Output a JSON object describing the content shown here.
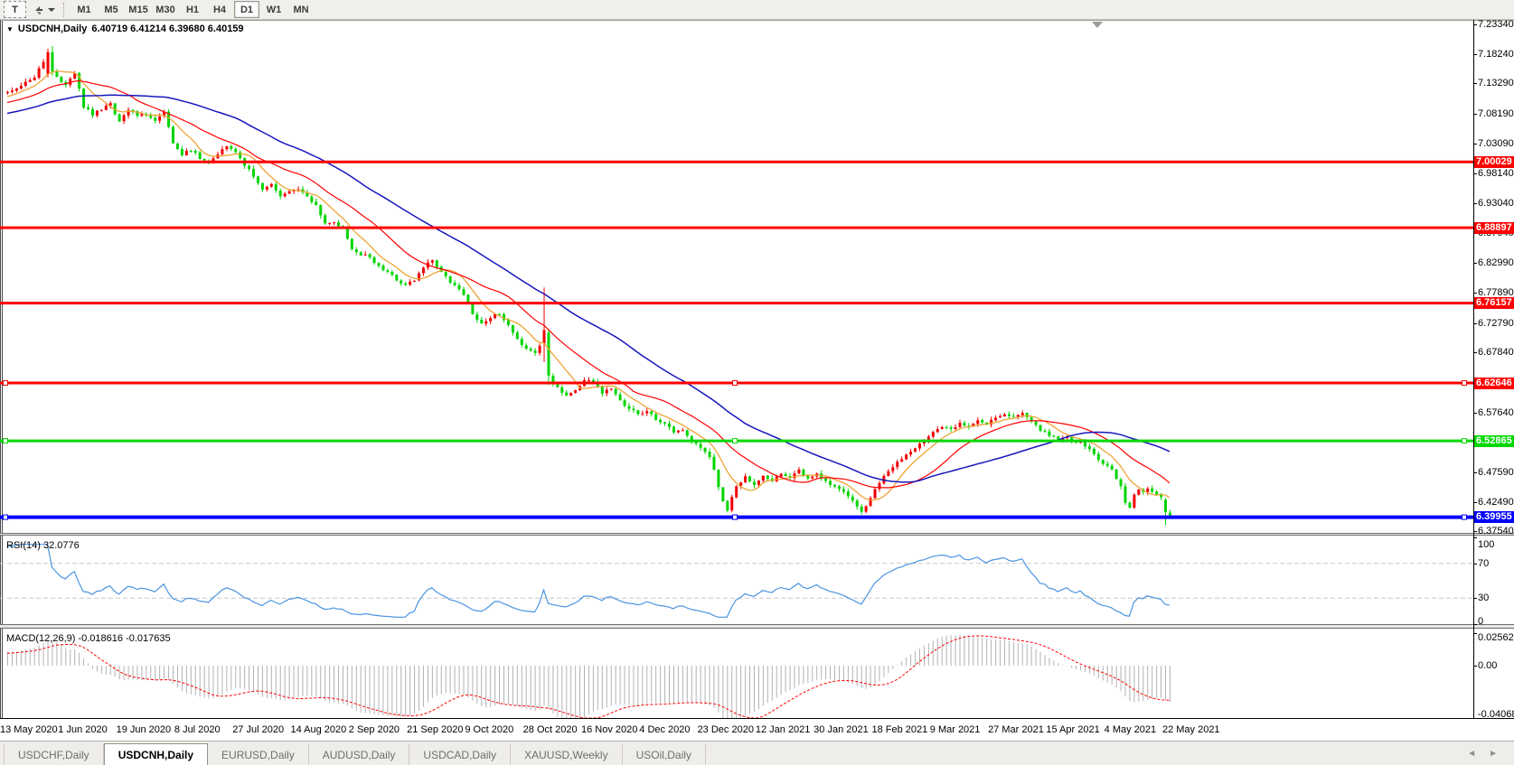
{
  "toolbar": {
    "text_tool_label": "T",
    "timeframes": [
      "M1",
      "M5",
      "M15",
      "M30",
      "H1",
      "H4",
      "D1",
      "W1",
      "MN"
    ],
    "active_timeframe": "D1"
  },
  "chart": {
    "symbol_title": "USDCNH,Daily",
    "ohlc_text": "6.40719 6.41214 6.39680 6.40159",
    "price_axis_ticks": [
      "7.23340",
      "7.18240",
      "7.13290",
      "7.08190",
      "7.03090",
      "6.98140",
      "6.93040",
      "6.87940",
      "6.82990",
      "6.77890",
      "6.72790",
      "6.67840",
      "6.57640",
      "6.47590",
      "6.42490",
      "6.37540"
    ],
    "hlines": [
      {
        "price": 7.00029,
        "label": "7.00029",
        "color": "#ff0000",
        "width": 3,
        "selected": false
      },
      {
        "price": 6.88897,
        "label": "6.88897",
        "color": "#ff0000",
        "width": 3,
        "selected": false
      },
      {
        "price": 6.76157,
        "label": "6.76157",
        "color": "#ff0000",
        "width": 3,
        "selected": false
      },
      {
        "price": 6.62646,
        "label": "6.62646",
        "color": "#ff0000",
        "width": 3,
        "selected": true
      },
      {
        "price": 6.52865,
        "label": "6.52865",
        "color": "#00d800",
        "width": 3,
        "selected": true
      },
      {
        "price": 6.39955,
        "label": "6.39955",
        "color": "#0000ff",
        "width": 4,
        "selected": true
      }
    ]
  },
  "rsi": {
    "label": "RSI(14) 32.0776",
    "last_value": 32.0776,
    "scale_labels": [
      [
        "100",
        100
      ],
      [
        "70",
        70
      ],
      [
        "30",
        30
      ],
      [
        "0",
        0
      ]
    ],
    "dashed_levels": [
      70,
      30
    ],
    "line_color": "#4a95e0"
  },
  "macd": {
    "label": "MACD(12,26,9) -0.018616 -0.017635",
    "last_main": -0.018616,
    "last_signal": -0.017635,
    "scale_labels": [
      [
        "0.025623",
        0.025623
      ],
      [
        "0.00",
        0
      ],
      [
        "-0.040687",
        -0.040687
      ]
    ],
    "hist_color": "#b2b2b2",
    "signal_color": "#ff0000"
  },
  "dates": [
    "13 May 2020",
    "1 Jun 2020",
    "19 Jun 2020",
    "8 Jul 2020",
    "27 Jul 2020",
    "14 Aug 2020",
    "2 Sep 2020",
    "21 Sep 2020",
    "9 Oct 2020",
    "28 Oct 2020",
    "16 Nov 2020",
    "4 Dec 2020",
    "23 Dec 2020",
    "12 Jan 2021",
    "30 Jan 2021",
    "18 Feb 2021",
    "9 Mar 2021",
    "27 Mar 2021",
    "15 Apr 2021",
    "4 May 2021",
    "22 May 2021"
  ],
  "tabs": {
    "items": [
      {
        "label": "USDCHF,Daily",
        "active": false
      },
      {
        "label": "USDCNH,Daily",
        "active": true
      },
      {
        "label": "EURUSD,Daily",
        "active": false
      },
      {
        "label": "AUDUSD,Daily",
        "active": false
      },
      {
        "label": "USDCAD,Daily",
        "active": false
      },
      {
        "label": "XAUUSD,Weekly",
        "active": false
      },
      {
        "label": "USOil,Daily",
        "active": false
      }
    ],
    "scroll_left": "◄",
    "scroll_right": "►"
  },
  "chart_data": {
    "type": "candlestick",
    "symbol": "USDCNH",
    "timeframe": "Daily",
    "bar_count": 261,
    "up_color": "#f20000",
    "down_color": "#00d500",
    "last_bar": {
      "open": 6.40719,
      "high": 6.41214,
      "low": 6.3968,
      "close": 6.40159
    },
    "price_range_visible": [
      6.373,
      7.2405
    ],
    "moving_averages": [
      {
        "name": "fast",
        "period": 8,
        "color": "#efa335",
        "width": 1.3
      },
      {
        "name": "mid",
        "period": 20,
        "color": "#ff0000",
        "width": 1.2
      },
      {
        "name": "slow",
        "period": 45,
        "color": "#1717bd",
        "width": 1.5
      }
    ],
    "price_anchors": [
      [
        -60,
        7.04
      ],
      [
        -40,
        7.055
      ],
      [
        -20,
        7.085
      ],
      [
        -8,
        7.1
      ],
      [
        0,
        7.118
      ],
      [
        3,
        7.13
      ],
      [
        6,
        7.145
      ],
      [
        8,
        7.168
      ],
      [
        9,
        7.186
      ],
      [
        10,
        7.153
      ],
      [
        11,
        7.145
      ],
      [
        13,
        7.131
      ],
      [
        15,
        7.149
      ],
      [
        16,
        7.125
      ],
      [
        17,
        7.094
      ],
      [
        19,
        7.08
      ],
      [
        21,
        7.09
      ],
      [
        23,
        7.097
      ],
      [
        25,
        7.07
      ],
      [
        27,
        7.089
      ],
      [
        29,
        7.081
      ],
      [
        31,
        7.078
      ],
      [
        33,
        7.069
      ],
      [
        35,
        7.087
      ],
      [
        36,
        7.06
      ],
      [
        37,
        7.035
      ],
      [
        39,
        7.013
      ],
      [
        41,
        7.021
      ],
      [
        43,
        7.006
      ],
      [
        45,
        6.999
      ],
      [
        47,
        7.013
      ],
      [
        49,
        7.029
      ],
      [
        51,
        7.018
      ],
      [
        53,
        6.996
      ],
      [
        55,
        6.976
      ],
      [
        57,
        6.953
      ],
      [
        59,
        6.963
      ],
      [
        61,
        6.94
      ],
      [
        63,
        6.948
      ],
      [
        65,
        6.953
      ],
      [
        67,
        6.94
      ],
      [
        69,
        6.927
      ],
      [
        71,
        6.895
      ],
      [
        73,
        6.899
      ],
      [
        75,
        6.887
      ],
      [
        77,
        6.853
      ],
      [
        79,
        6.844
      ],
      [
        81,
        6.839
      ],
      [
        83,
        6.823
      ],
      [
        85,
        6.815
      ],
      [
        87,
        6.801
      ],
      [
        89,
        6.793
      ],
      [
        91,
        6.801
      ],
      [
        93,
        6.823
      ],
      [
        95,
        6.834
      ],
      [
        97,
        6.815
      ],
      [
        99,
        6.796
      ],
      [
        101,
        6.786
      ],
      [
        103,
        6.761
      ],
      [
        104,
        6.743
      ],
      [
        106,
        6.727
      ],
      [
        108,
        6.737
      ],
      [
        110,
        6.743
      ],
      [
        112,
        6.723
      ],
      [
        114,
        6.701
      ],
      [
        116,
        6.685
      ],
      [
        118,
        6.678
      ],
      [
        119,
        6.691
      ],
      [
        120,
        6.716
      ],
      [
        121,
        6.637
      ],
      [
        123,
        6.619
      ],
      [
        125,
        6.605
      ],
      [
        127,
        6.613
      ],
      [
        129,
        6.631
      ],
      [
        131,
        6.627
      ],
      [
        133,
        6.611
      ],
      [
        135,
        6.617
      ],
      [
        137,
        6.596
      ],
      [
        139,
        6.584
      ],
      [
        141,
        6.574
      ],
      [
        143,
        6.579
      ],
      [
        145,
        6.566
      ],
      [
        147,
        6.557
      ],
      [
        149,
        6.544
      ],
      [
        151,
        6.546
      ],
      [
        153,
        6.529
      ],
      [
        155,
        6.519
      ],
      [
        157,
        6.501
      ],
      [
        158,
        6.479
      ],
      [
        159,
        6.453
      ],
      [
        160,
        6.426
      ],
      [
        161,
        6.409
      ],
      [
        162,
        6.433
      ],
      [
        163,
        6.453
      ],
      [
        165,
        6.466
      ],
      [
        167,
        6.456
      ],
      [
        169,
        6.469
      ],
      [
        171,
        6.463
      ],
      [
        173,
        6.474
      ],
      [
        175,
        6.468
      ],
      [
        177,
        6.479
      ],
      [
        179,
        6.463
      ],
      [
        181,
        6.473
      ],
      [
        183,
        6.461
      ],
      [
        185,
        6.453
      ],
      [
        187,
        6.441
      ],
      [
        189,
        6.426
      ],
      [
        191,
        6.406
      ],
      [
        193,
        6.433
      ],
      [
        195,
        6.459
      ],
      [
        197,
        6.477
      ],
      [
        199,
        6.491
      ],
      [
        201,
        6.504
      ],
      [
        203,
        6.517
      ],
      [
        205,
        6.529
      ],
      [
        207,
        6.543
      ],
      [
        209,
        6.552
      ],
      [
        211,
        6.549
      ],
      [
        213,
        6.559
      ],
      [
        215,
        6.553
      ],
      [
        217,
        6.563
      ],
      [
        219,
        6.557
      ],
      [
        221,
        6.567
      ],
      [
        223,
        6.573
      ],
      [
        225,
        6.569
      ],
      [
        227,
        6.576
      ],
      [
        229,
        6.563
      ],
      [
        231,
        6.549
      ],
      [
        233,
        6.539
      ],
      [
        235,
        6.531
      ],
      [
        237,
        6.534
      ],
      [
        239,
        6.528
      ],
      [
        241,
        6.521
      ],
      [
        243,
        6.507
      ],
      [
        245,
        6.491
      ],
      [
        247,
        6.479
      ],
      [
        249,
        6.453
      ],
      [
        250,
        6.426
      ],
      [
        251,
        6.413
      ],
      [
        252,
        6.439
      ],
      [
        253,
        6.446
      ],
      [
        254,
        6.441
      ],
      [
        255,
        6.449
      ],
      [
        256,
        6.443
      ],
      [
        257,
        6.439
      ],
      [
        258,
        6.433
      ],
      [
        259,
        6.41
      ],
      [
        260,
        6.40159
      ]
    ],
    "special_bars": {
      "9": [
        7.149,
        7.192,
        7.143,
        7.186
      ],
      "10": [
        7.186,
        7.1965,
        7.146,
        7.153
      ],
      "120": [
        6.693,
        6.788,
        6.662,
        6.716
      ],
      "121": [
        6.712,
        6.718,
        6.623,
        6.639
      ],
      "259": [
        6.429,
        6.432,
        6.386,
        6.408
      ],
      "260": [
        6.40719,
        6.41214,
        6.3968,
        6.40159
      ]
    },
    "indicators": [
      {
        "name": "RSI",
        "period": 14,
        "last": 32.0776
      },
      {
        "name": "MACD",
        "fast": 12,
        "slow": 26,
        "signal": 9,
        "last_main": -0.018616,
        "last_signal": -0.017635
      }
    ]
  }
}
